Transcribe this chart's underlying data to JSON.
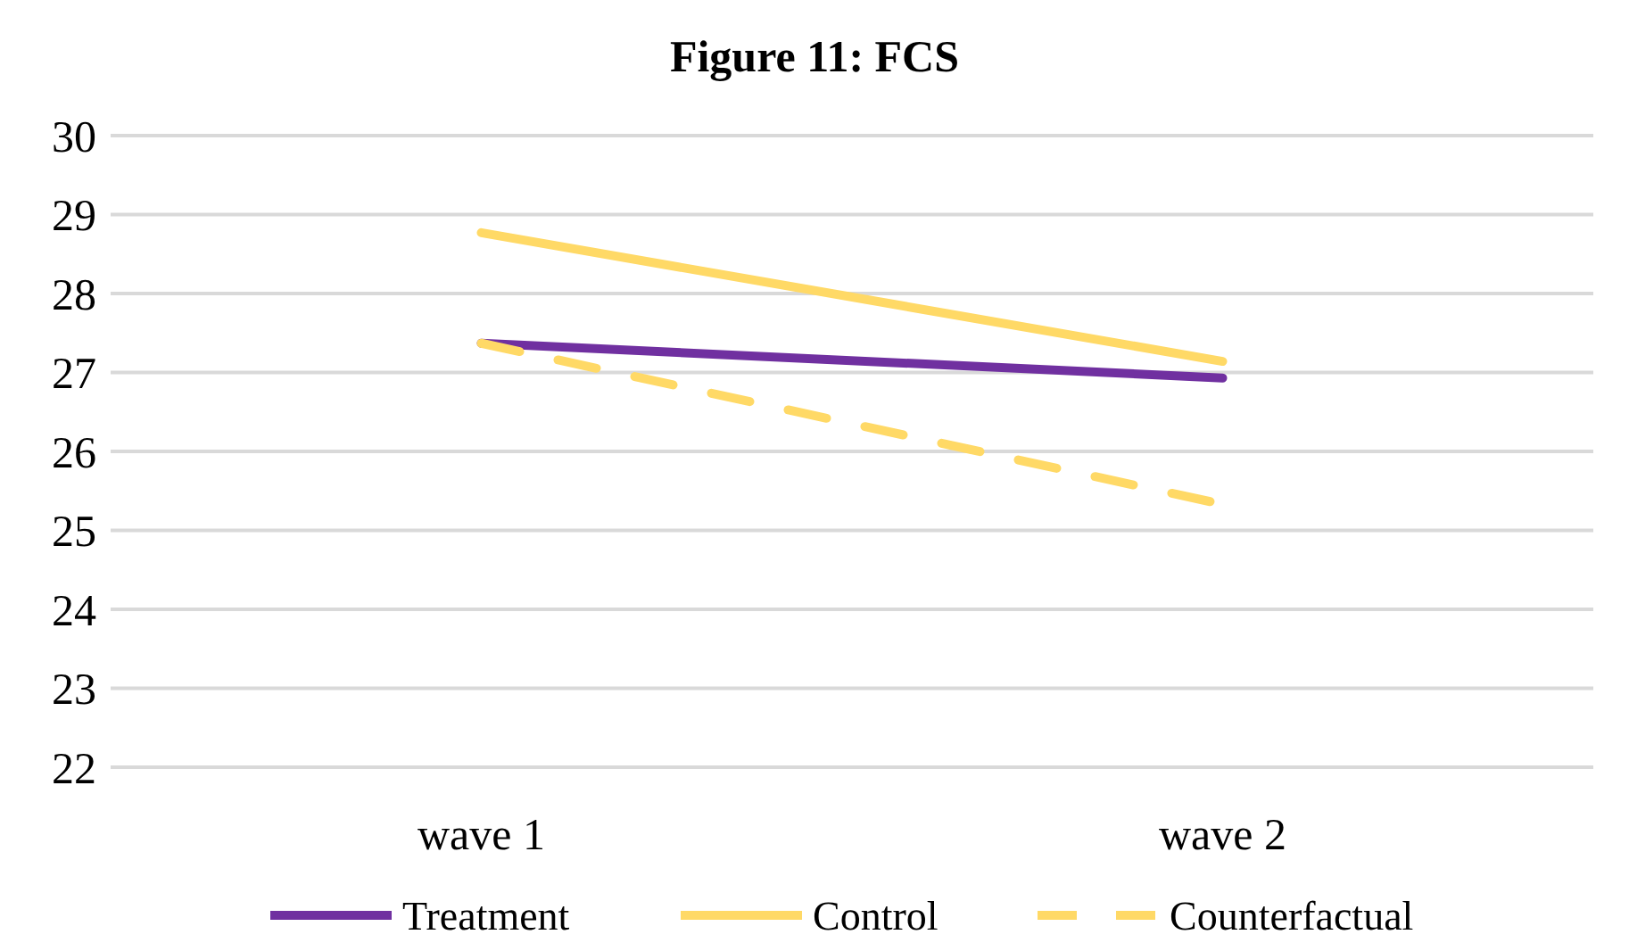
{
  "chart_data": {
    "type": "line",
    "title": "Figure 11: FCS",
    "categories": [
      "wave 1",
      "wave 2"
    ],
    "series": [
      {
        "name": "Treatment",
        "color": "#7030a0",
        "values": [
          27.37,
          26.93
        ]
      },
      {
        "name": "Control",
        "color": "#ffd966",
        "values": [
          28.77,
          27.14
        ]
      },
      {
        "name": "Counterfactual",
        "color": "#ffd966",
        "values": [
          27.37,
          25.33
        ],
        "line_style": "dashed"
      }
    ],
    "ylim": [
      22,
      30
    ],
    "yticks": [
      22,
      23,
      24,
      25,
      26,
      27,
      28,
      29,
      30
    ],
    "grid": "y",
    "legend": "bottom",
    "marker": "none"
  }
}
